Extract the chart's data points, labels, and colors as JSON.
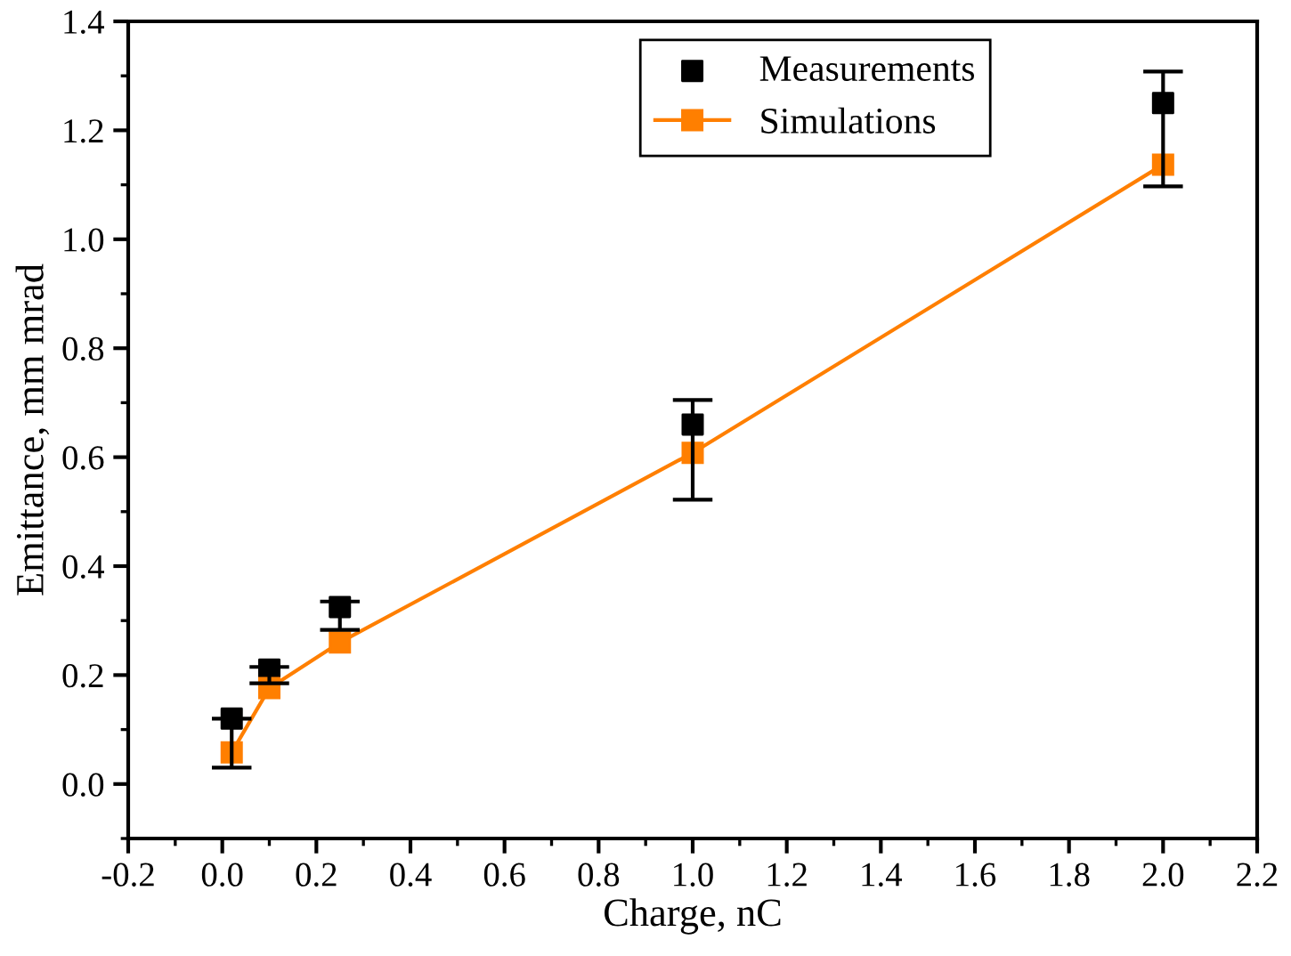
{
  "chart_data": {
    "type": "scatter",
    "xlabel": "Charge, nC",
    "ylabel": "Emittance, mm mrad",
    "xlim": [
      -0.2,
      2.2
    ],
    "xticks": [
      {
        "value": -0.2,
        "label": "-0.2"
      },
      {
        "value": 0,
        "label": "0.0"
      },
      {
        "value": 0.2,
        "label": "0.2"
      },
      {
        "value": 0.4,
        "label": "0.4"
      },
      {
        "value": 0.6,
        "label": "0.6"
      },
      {
        "value": 0.8,
        "label": "0.8"
      },
      {
        "value": 1,
        "label": "1.0"
      },
      {
        "value": 1.2,
        "label": "1.2"
      },
      {
        "value": 1.4,
        "label": "1.4"
      },
      {
        "value": 1.6,
        "label": "1.6"
      },
      {
        "value": 1.8,
        "label": "1.8"
      },
      {
        "value": 2,
        "label": "2.0"
      },
      {
        "value": 2.2,
        "label": "2.2"
      }
    ],
    "ylim": [
      -0.1,
      1.4
    ],
    "yticks": [
      {
        "value": 0,
        "label": "0.0"
      },
      {
        "value": 0.2,
        "label": "0.2"
      },
      {
        "value": 0.4,
        "label": "0.4"
      },
      {
        "value": 0.6,
        "label": "0.6"
      },
      {
        "value": 0.8,
        "label": "0.8"
      },
      {
        "value": 1,
        "label": "1.0"
      },
      {
        "value": 1.2,
        "label": "1.2"
      },
      {
        "value": 1.4,
        "label": "1.4"
      }
    ],
    "x": [
      0.02,
      0.1,
      0.25,
      1,
      2
    ],
    "grid": false,
    "legend": "top right",
    "marker": "square",
    "series": [
      {
        "name": "Measurements",
        "color": "#000000",
        "values": [
          0.12,
          0.21,
          0.325,
          0.66,
          1.25
        ],
        "errors": [
          [
            0.03,
            0.12
          ],
          [
            0.185,
            0.215
          ],
          [
            0.283,
            0.335
          ],
          [
            0.522,
            0.705
          ],
          [
            1.097,
            1.308
          ]
        ]
      },
      {
        "name": "Simulations",
        "type": "line",
        "color": "#ff7f00",
        "values": [
          0.058,
          0.176,
          0.26,
          0.608,
          1.137
        ]
      }
    ]
  }
}
